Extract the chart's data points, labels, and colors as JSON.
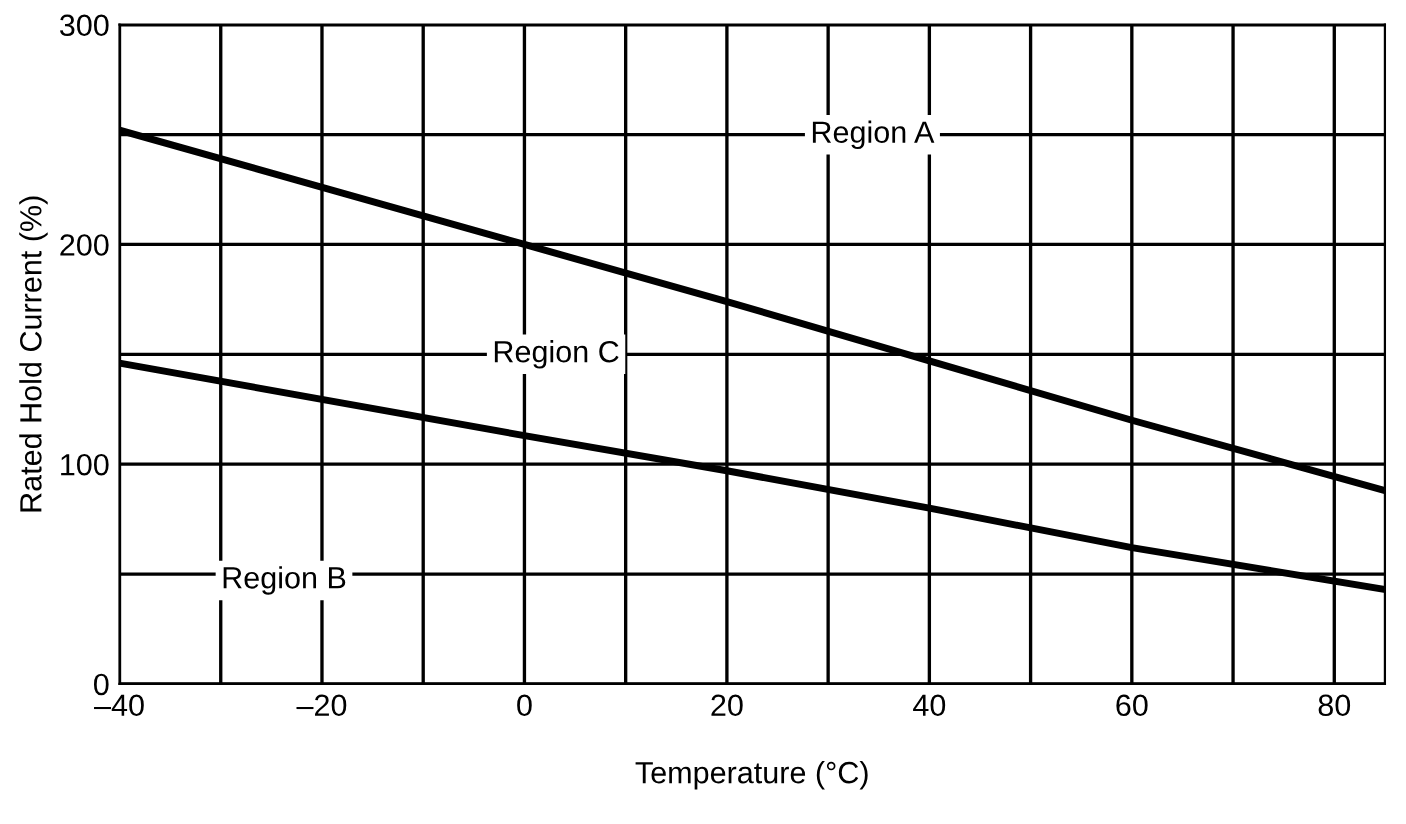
{
  "chart_data": {
    "type": "line",
    "xlabel": "Temperature (°C)",
    "ylabel": "Rated Hold Current (%)",
    "xlim": [
      -40,
      85
    ],
    "ylim": [
      0,
      300
    ],
    "xticks": [
      {
        "value": -40,
        "label": "–40"
      },
      {
        "value": -30,
        "label": null
      },
      {
        "value": -20,
        "label": "–20"
      },
      {
        "value": -10,
        "label": null
      },
      0,
      {
        "value": 10,
        "label": null
      },
      20,
      {
        "value": 30,
        "label": null
      },
      40,
      {
        "value": 50,
        "label": null
      },
      60,
      {
        "value": 70,
        "label": null
      },
      80
    ],
    "yticks": [
      0,
      {
        "value": 50,
        "label": null
      },
      100,
      {
        "value": 150,
        "label": null
      },
      200,
      {
        "value": 250,
        "label": null
      },
      300
    ],
    "grid": true,
    "legend": false,
    "marker": "none",
    "line_style": "solid",
    "x": [
      -40,
      0,
      20,
      40,
      60,
      85
    ],
    "series": [
      {
        "color": "#000000",
        "values": [
          252,
          200,
          174,
          147,
          120,
          88
        ]
      },
      {
        "color": "#000000",
        "values": [
          146,
          113,
          97,
          80,
          62,
          43
        ]
      }
    ],
    "annotations": [
      "Region A",
      "Region C",
      "Region B"
    ]
  }
}
